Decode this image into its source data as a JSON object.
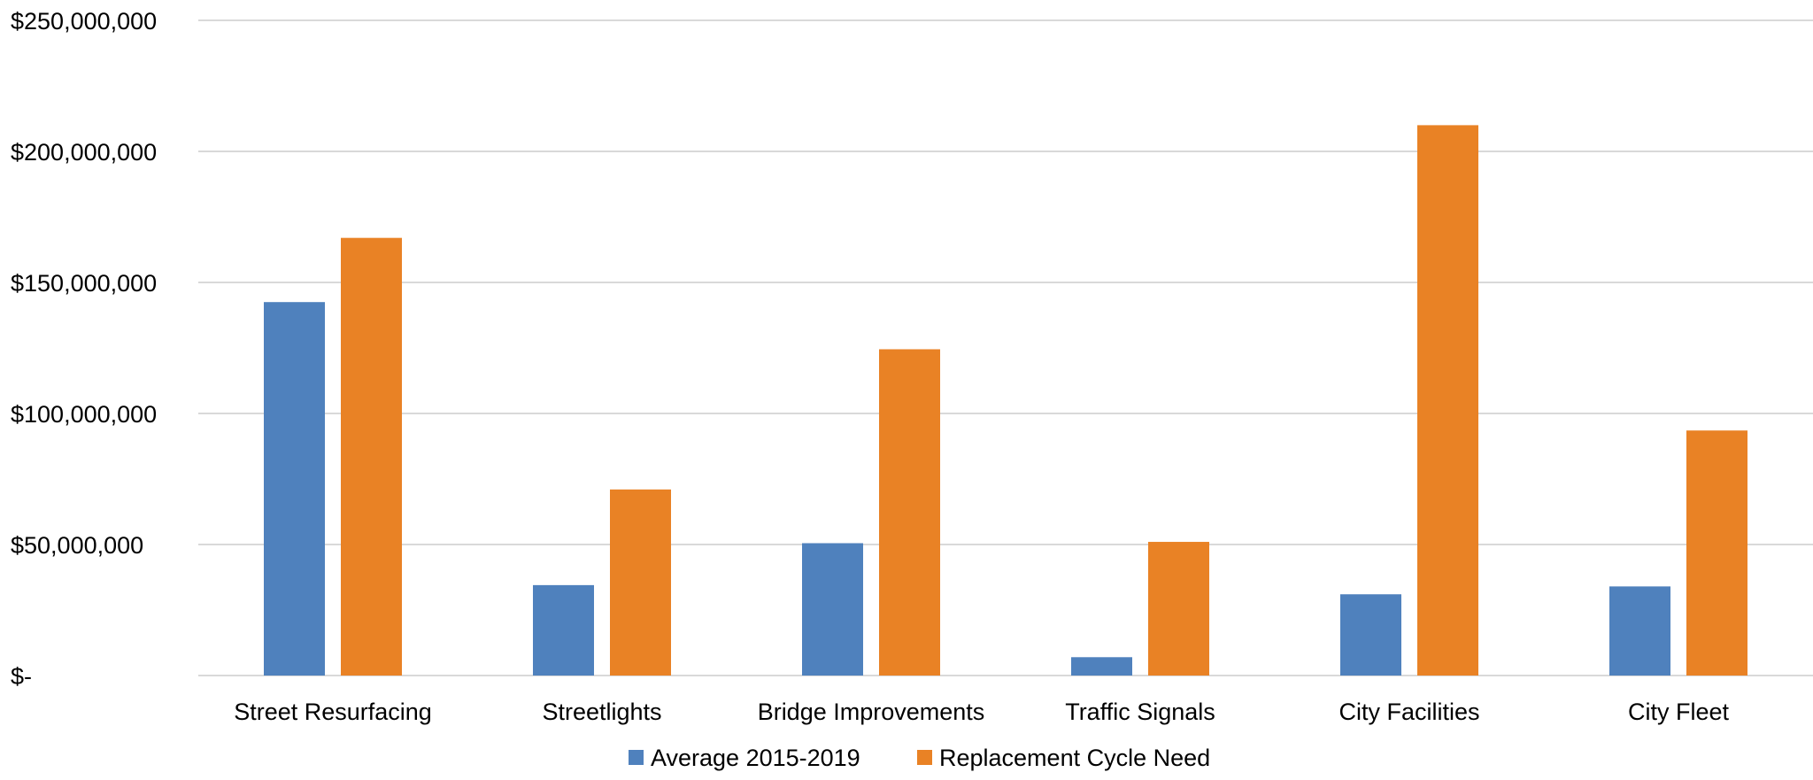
{
  "chart_data": {
    "type": "bar",
    "title": "",
    "xlabel": "",
    "ylabel": "",
    "ylim": [
      0,
      250000000
    ],
    "grid": true,
    "legend_position": "bottom",
    "y_ticks": [
      {
        "value": 0,
        "label": "$-"
      },
      {
        "value": 50000000,
        "label": "$50,000,000"
      },
      {
        "value": 100000000,
        "label": "$100,000,000"
      },
      {
        "value": 150000000,
        "label": "$150,000,000"
      },
      {
        "value": 200000000,
        "label": "$200,000,000"
      },
      {
        "value": 250000000,
        "label": "$250,000,000"
      }
    ],
    "categories": [
      "Street Resurfacing",
      "Streetlights",
      "Bridge Improvements",
      "Traffic Signals",
      "City Facilities",
      "City Fleet"
    ],
    "series": [
      {
        "name": "Average 2015-2019",
        "color": "#4f81bd",
        "values": [
          142500000,
          34500000,
          50500000,
          7000000,
          31000000,
          34000000
        ]
      },
      {
        "name": "Replacement Cycle Need",
        "color": "#e98225",
        "values": [
          167000000,
          71000000,
          124500000,
          51000000,
          210000000,
          93500000
        ]
      }
    ]
  }
}
